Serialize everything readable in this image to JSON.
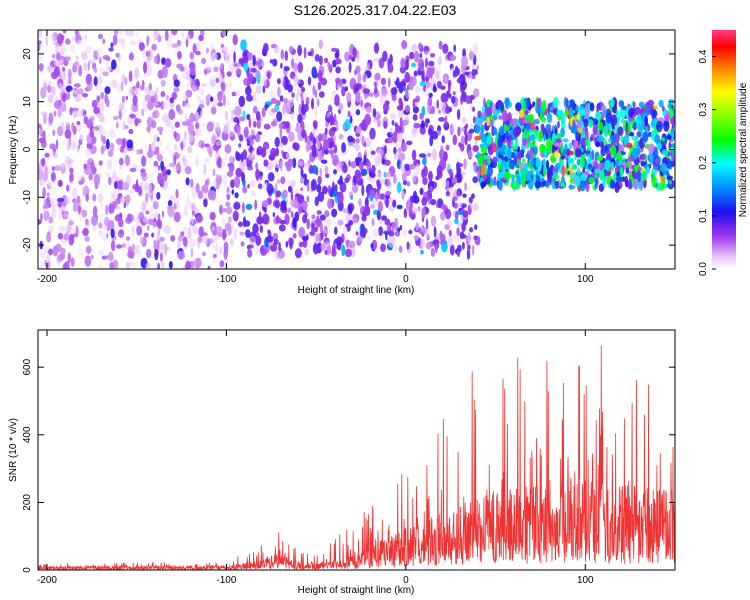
{
  "title": "S126.2025.317.04.22.E03",
  "chart_data": [
    {
      "type": "heatmap",
      "xlabel": "Height of straight line (km)",
      "ylabel": "Frequency (Hz)",
      "xlim": [
        -205,
        150
      ],
      "ylim": [
        -25,
        25
      ],
      "xticks": [
        -200,
        -100,
        0,
        100
      ],
      "yticks": [
        -20,
        -10,
        0,
        10,
        20
      ],
      "colorbar": {
        "label": "Normalized spectral amplitude",
        "range": [
          0.0,
          0.45
        ],
        "ticks": [
          0.0,
          0.1,
          0.2,
          0.3,
          0.4
        ],
        "tick_labels": [
          "0.0",
          "0.1",
          "0.2",
          "0.3",
          "0.4"
        ]
      },
      "description_regions": [
        {
          "x_range": [
            -205,
            -95
          ],
          "freq_range": [
            -25,
            25
          ],
          "level": 0.04
        },
        {
          "x_range": [
            -95,
            40
          ],
          "freq_range": [
            -22,
            22
          ],
          "level": 0.07
        },
        {
          "x_range": [
            40,
            150
          ],
          "freq_range": [
            -8,
            10
          ],
          "level": 0.18
        }
      ],
      "seed": 20251317
    },
    {
      "type": "line",
      "xlabel": "Height of straight line (km)",
      "ylabel": "SNR (10 * v/v)",
      "xlim": [
        -205,
        150
      ],
      "ylim": [
        0,
        710
      ],
      "xticks": [
        -200,
        -100,
        0,
        100
      ],
      "yticks": [
        0,
        200,
        400,
        600
      ],
      "color": "#f03232",
      "envelope": [
        {
          "x": -205,
          "base": 8,
          "peak": 20
        },
        {
          "x": -100,
          "base": 10,
          "peak": 25
        },
        {
          "x": -80,
          "base": 20,
          "peak": 80
        },
        {
          "x": -70,
          "base": 40,
          "peak": 125
        },
        {
          "x": -60,
          "base": 20,
          "peak": 60
        },
        {
          "x": -50,
          "base": 15,
          "peak": 40
        },
        {
          "x": -30,
          "base": 30,
          "peak": 140
        },
        {
          "x": -15,
          "base": 60,
          "peak": 250
        },
        {
          "x": 0,
          "base": 90,
          "peak": 350
        },
        {
          "x": 20,
          "base": 120,
          "peak": 440
        },
        {
          "x": 40,
          "base": 160,
          "peak": 620
        },
        {
          "x": 60,
          "base": 180,
          "peak": 650
        },
        {
          "x": 90,
          "base": 200,
          "peak": 710
        },
        {
          "x": 120,
          "base": 180,
          "peak": 640
        },
        {
          "x": 150,
          "base": 170,
          "peak": 460
        }
      ],
      "seed": 4227
    }
  ]
}
